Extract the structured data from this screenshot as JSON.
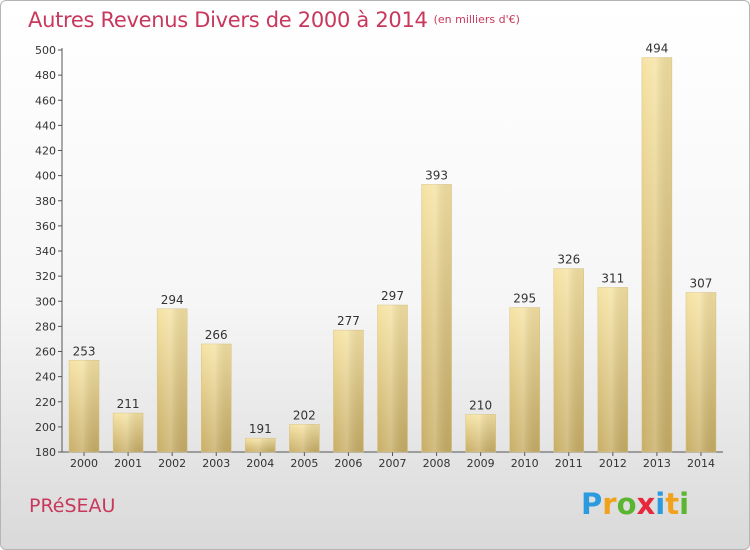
{
  "title": "Autres Revenus Divers de 2000 à 2014",
  "unit_note": "(en milliers d'€)",
  "place_name": "PRéSEAU",
  "logo": {
    "letters": [
      "P",
      "r",
      "o",
      "x",
      "i",
      "t",
      "i"
    ],
    "colors": [
      "#2b9be0",
      "#f0a21c",
      "#5bb531",
      "#e8283a",
      "#2b9be0",
      "#f0a21c",
      "#5bb531"
    ]
  },
  "chart_data": {
    "type": "bar",
    "title": "Autres Revenus Divers de 2000 à 2014",
    "subtitle": "(en milliers d'€)",
    "xlabel": "",
    "ylabel": "",
    "categories": [
      "2000",
      "2001",
      "2002",
      "2003",
      "2004",
      "2005",
      "2006",
      "2007",
      "2008",
      "2009",
      "2010",
      "2011",
      "2012",
      "2013",
      "2014"
    ],
    "values": [
      253,
      211,
      294,
      266,
      191,
      202,
      277,
      297,
      393,
      210,
      295,
      326,
      311,
      494,
      307
    ],
    "ylim": [
      180,
      500
    ],
    "yticks": [
      180,
      200,
      220,
      240,
      260,
      280,
      300,
      320,
      340,
      360,
      380,
      400,
      420,
      440,
      460,
      480,
      500
    ],
    "grid": false,
    "legend": "none",
    "bar_color": "#e6cf8a"
  }
}
